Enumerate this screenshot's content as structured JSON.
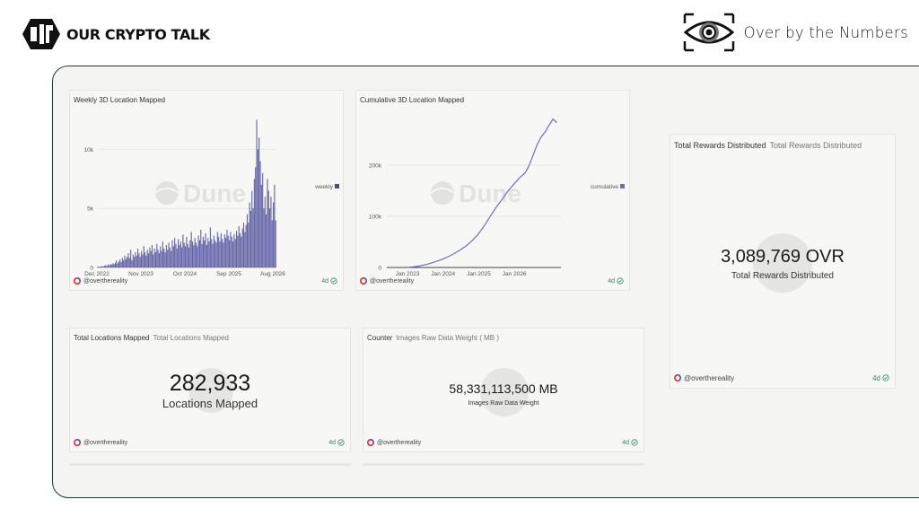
{
  "header": {
    "brand": "OUR CRYPTO TALK",
    "section": "Over by the Numbers"
  },
  "cards": {
    "weekly": {
      "title": "Weekly 3D Location Mapped",
      "watermark": "Dune",
      "author": "@overthereality",
      "age": "4d"
    },
    "cumulative": {
      "title": "Cumulative 3D Location Mapped",
      "watermark": "Dune",
      "author": "@overthereality",
      "age": "4d"
    },
    "rewards": {
      "title": "Total Rewards Distributed",
      "subtitle": "Total Rewards Distributed",
      "value": "3,089,769 OVR",
      "label": "Total Rewards Distributed",
      "author": "@overthereality",
      "age": "4d"
    },
    "locations": {
      "title": "Total Locations Mapped",
      "subtitle": "Total Locations Mapped",
      "value": "282,933",
      "label": "Locations Mapped",
      "author": "@overthereality",
      "age": "4d"
    },
    "images": {
      "title": "Counter",
      "subtitle": "Images Raw Data Weight ( MB )",
      "value": "58,331,113,500 MB",
      "label": "Images Raw Data Weight",
      "author": "@overthereality",
      "age": "4d"
    }
  },
  "chart_data": [
    {
      "type": "bar",
      "title": "Weekly 3D Location Mapped",
      "x_tick_labels": [
        "Dec 2022",
        "Nov 2023",
        "Oct 2024",
        "Sep 2025",
        "Aug 2026"
      ],
      "y_tick_labels": [
        "0",
        "5k",
        "10k"
      ],
      "ylim": [
        0,
        13000
      ],
      "legend": "right",
      "color": "#4a4a9c",
      "series": [
        {
          "name": "weekly",
          "values": [
            50,
            60,
            80,
            60,
            120,
            90,
            150,
            200,
            120,
            250,
            180,
            300,
            220,
            350,
            280,
            400,
            600,
            350,
            500,
            700,
            450,
            800,
            600,
            1000,
            700,
            900,
            1200,
            800,
            1500,
            600,
            1100,
            900,
            1300,
            1000,
            1600,
            1200,
            900,
            1400,
            1100,
            1800,
            1300,
            1000,
            1500,
            1200,
            1700,
            1400,
            1900,
            1100,
            1600,
            1300,
            2000,
            1500,
            1200,
            1800,
            1400,
            2200,
            1600,
            1300,
            1900,
            1500,
            2100,
            1700,
            1400,
            2300,
            1800,
            2500,
            2000,
            1600,
            2400,
            1900,
            2200,
            1700,
            2800,
            2100,
            1800,
            2600,
            2000,
            1700,
            2300,
            3000,
            2200,
            1900,
            2500,
            2100,
            1800,
            2700,
            2300,
            3200,
            2000,
            2600,
            2300,
            2900,
            1900,
            2500,
            2200,
            3400,
            2400,
            2000,
            2700,
            2300,
            2100,
            3000,
            2600,
            2200,
            2900,
            2400,
            2100,
            2800,
            2500,
            3200,
            2700,
            2300,
            3000,
            2600,
            2200,
            2800,
            2400,
            3100,
            2700,
            3500,
            2900,
            2600,
            3300,
            3800,
            3000,
            3600,
            4500,
            3800,
            5500,
            4800,
            6500,
            5000,
            7500,
            8500,
            12500,
            10000,
            11000,
            9000,
            7000,
            8000,
            5000,
            6000,
            4500,
            7500,
            6500,
            5000,
            6000,
            4000,
            5500,
            7000,
            4000
          ]
        }
      ]
    },
    {
      "type": "line",
      "title": "Cumulative 3D Location Mapped",
      "x_tick_labels": [
        "Jan 2023",
        "Jan 2024",
        "Jan 2025",
        "Jan 2026"
      ],
      "y_tick_labels": [
        "0",
        "100k",
        "200k"
      ],
      "ylim": [
        0,
        300000
      ],
      "legend": "right",
      "color": "#6f6fb0",
      "series": [
        {
          "name": "cumulative",
          "x": [
            0,
            3,
            6,
            9,
            12,
            15,
            18,
            21,
            24,
            27,
            30,
            33,
            36,
            39,
            42,
            45,
            48,
            51,
            54,
            57,
            60,
            62,
            64,
            66,
            68,
            70,
            72,
            74,
            76
          ],
          "values": [
            0,
            1000,
            2500,
            5000,
            8000,
            12000,
            16000,
            21000,
            27000,
            34000,
            42000,
            52000,
            64000,
            80000,
            98000,
            116000,
            132000,
            148000,
            162000,
            175000,
            185000,
            200000,
            220000,
            240000,
            255000,
            265000,
            278000,
            290000,
            283000
          ]
        }
      ]
    }
  ]
}
